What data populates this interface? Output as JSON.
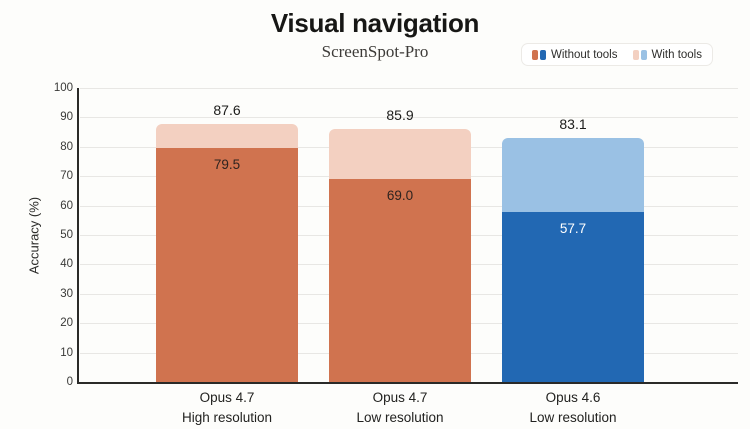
{
  "header": {
    "title": "Visual navigation",
    "subtitle": "ScreenSpot-Pro"
  },
  "legend": {
    "items": [
      {
        "label": "Without tools",
        "swatches": [
          "#d0734f",
          "#2268b3"
        ]
      },
      {
        "label": "With tools",
        "swatches": [
          "#f3d0c1",
          "#9ac1e4"
        ]
      }
    ]
  },
  "chart_data": {
    "type": "bar",
    "title": "Visual navigation",
    "subtitle": "ScreenSpot-Pro",
    "ylabel": "Accuracy (%)",
    "xlabel": "",
    "ylim": [
      0,
      100
    ],
    "ytick_step": 10,
    "ytick_labels": [
      "0",
      "10",
      "20",
      "30",
      "40",
      "50",
      "60",
      "70",
      "80",
      "90",
      "100"
    ],
    "grid": true,
    "legend_position": "top-right",
    "categories": [
      {
        "line1": "Opus 4.7",
        "line2": "High resolution"
      },
      {
        "line1": "Opus 4.7",
        "line2": "Low resolution"
      },
      {
        "line1": "Opus 4.6",
        "line2": "Low resolution"
      }
    ],
    "series": [
      {
        "name": "With tools",
        "values": [
          87.6,
          85.9,
          83.1
        ],
        "value_labels": [
          "87.6",
          "85.9",
          "83.1"
        ],
        "colors": [
          "#f3d0c1",
          "#f3d0c1",
          "#9ac1e4"
        ],
        "label_placement": "above",
        "label_colors": [
          "#1c1c1a",
          "#1c1c1a",
          "#1c1c1a"
        ]
      },
      {
        "name": "Without tools",
        "values": [
          79.5,
          69.0,
          57.7
        ],
        "value_labels": [
          "79.5",
          "69.0",
          "57.7"
        ],
        "colors": [
          "#d0734f",
          "#d0734f",
          "#2268b3"
        ],
        "label_placement": "inside-top",
        "label_colors": [
          "#2e231f",
          "#2e231f",
          "#ffffff"
        ]
      }
    ]
  },
  "colors": {
    "background": "#fdfdfb",
    "axis": "#2a2a28",
    "gridline": "#e8e7e4",
    "orange_dark": "#d0734f",
    "orange_light": "#f3d0c1",
    "blue_dark": "#2268b3",
    "blue_light": "#9ac1e4"
  }
}
